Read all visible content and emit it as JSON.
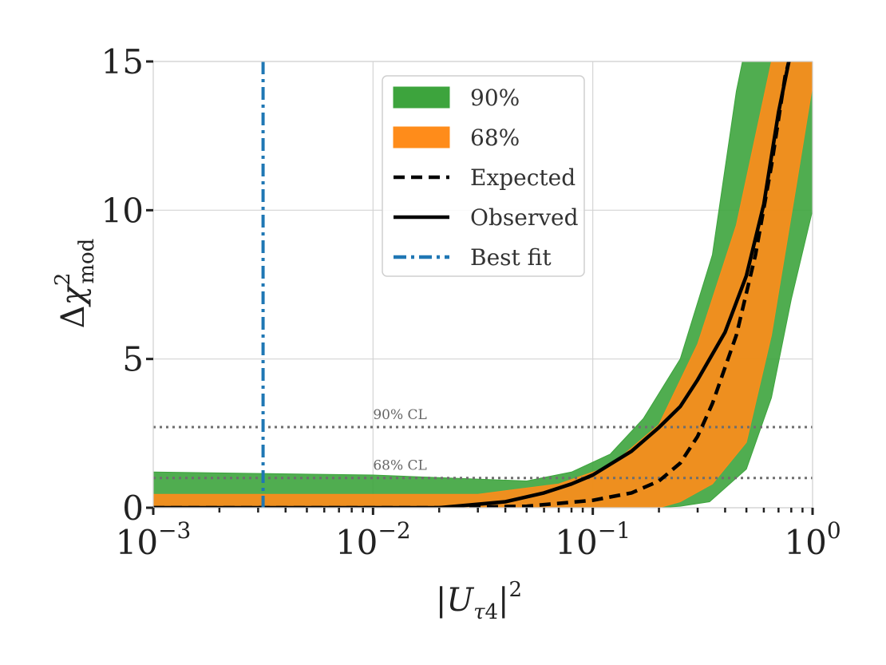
{
  "chart_data": {
    "type": "area",
    "xscale": "log",
    "xlim": [
      0.001,
      1
    ],
    "ylim": [
      0,
      15
    ],
    "grid": true,
    "xlabel": "|U_τ4|^2",
    "ylabel": "Δχ^2_mod",
    "x_ticks": [
      {
        "value": 0.001,
        "base": "10",
        "exp": "−3"
      },
      {
        "value": 0.01,
        "base": "10",
        "exp": "−2"
      },
      {
        "value": 0.1,
        "base": "10",
        "exp": "−1"
      },
      {
        "value": 1,
        "base": "10",
        "exp": "0"
      }
    ],
    "y_ticks": [
      {
        "value": 0,
        "label": "0"
      },
      {
        "value": 5,
        "label": "5"
      },
      {
        "value": 10,
        "label": "10"
      },
      {
        "value": 15,
        "label": "15"
      }
    ],
    "legend_position": "top-center",
    "bands": [
      {
        "name": "90%",
        "color": "#3da43d",
        "upper": [
          [
            0.001,
            1.2
          ],
          [
            0.01,
            1.1
          ],
          [
            0.05,
            0.9
          ],
          [
            0.08,
            1.2
          ],
          [
            0.12,
            1.8
          ],
          [
            0.17,
            3.0
          ],
          [
            0.25,
            5.0
          ],
          [
            0.35,
            8.5
          ],
          [
            0.45,
            14.0
          ],
          [
            0.48,
            15
          ]
        ],
        "lower": [
          [
            0.001,
            0.0
          ],
          [
            0.2,
            0.0
          ],
          [
            0.25,
            0.05
          ],
          [
            0.34,
            0.2
          ],
          [
            0.5,
            1.3
          ],
          [
            0.65,
            3.7
          ],
          [
            0.8,
            7.0
          ],
          [
            1.0,
            10.0
          ]
        ]
      },
      {
        "name": "68%",
        "color": "#ff8c1a",
        "upper": [
          [
            0.001,
            0.45
          ],
          [
            0.03,
            0.45
          ],
          [
            0.07,
            0.8
          ],
          [
            0.12,
            1.4
          ],
          [
            0.2,
            2.8
          ],
          [
            0.3,
            5.5
          ],
          [
            0.45,
            9.5
          ],
          [
            0.55,
            12.5
          ],
          [
            0.65,
            15
          ]
        ],
        "lower": [
          [
            0.001,
            0.0
          ],
          [
            0.2,
            0.0
          ],
          [
            0.25,
            0.2
          ],
          [
            0.35,
            0.8
          ],
          [
            0.5,
            2.2
          ],
          [
            0.65,
            5.8
          ],
          [
            0.85,
            11.0
          ],
          [
            1.0,
            14.2
          ]
        ]
      }
    ],
    "series": [
      {
        "name": "Expected",
        "style": "dashed",
        "color": "#000000",
        "points": [
          [
            0.001,
            0.0
          ],
          [
            0.02,
            0.0
          ],
          [
            0.05,
            0.05
          ],
          [
            0.1,
            0.25
          ],
          [
            0.15,
            0.5
          ],
          [
            0.2,
            0.9
          ],
          [
            0.25,
            1.5
          ],
          [
            0.3,
            2.4
          ],
          [
            0.35,
            3.5
          ],
          [
            0.45,
            5.8
          ],
          [
            0.55,
            8.5
          ],
          [
            0.65,
            11.5
          ],
          [
            0.75,
            14.5
          ],
          [
            0.78,
            15
          ]
        ]
      },
      {
        "name": "Observed",
        "style": "solid",
        "color": "#000000",
        "points": [
          [
            0.001,
            0.0
          ],
          [
            0.02,
            0.0
          ],
          [
            0.04,
            0.2
          ],
          [
            0.06,
            0.5
          ],
          [
            0.08,
            0.8
          ],
          [
            0.1,
            1.1
          ],
          [
            0.15,
            1.9
          ],
          [
            0.2,
            2.7
          ],
          [
            0.25,
            3.4
          ],
          [
            0.3,
            4.3
          ],
          [
            0.4,
            5.9
          ],
          [
            0.5,
            7.8
          ],
          [
            0.6,
            10.2
          ],
          [
            0.7,
            13.3
          ],
          [
            0.78,
            15
          ]
        ]
      },
      {
        "name": "Best fit",
        "style": "dashdot",
        "color": "#1f77b4",
        "vertical_x": 0.00316
      }
    ],
    "reference_lines": [
      {
        "y": 2.71,
        "label": "90% CL"
      },
      {
        "y": 1.0,
        "label": "68% CL"
      }
    ],
    "legend": [
      {
        "label": "90%",
        "kind": "patch",
        "color": "#3da43d"
      },
      {
        "label": "68%",
        "kind": "patch",
        "color": "#ff8c1a"
      },
      {
        "label": "Expected",
        "kind": "line",
        "style": "dashed",
        "color": "#000000"
      },
      {
        "label": "Observed",
        "kind": "line",
        "style": "solid",
        "color": "#000000"
      },
      {
        "label": "Best fit",
        "kind": "line",
        "style": "dashdot",
        "color": "#1f77b4"
      }
    ]
  }
}
